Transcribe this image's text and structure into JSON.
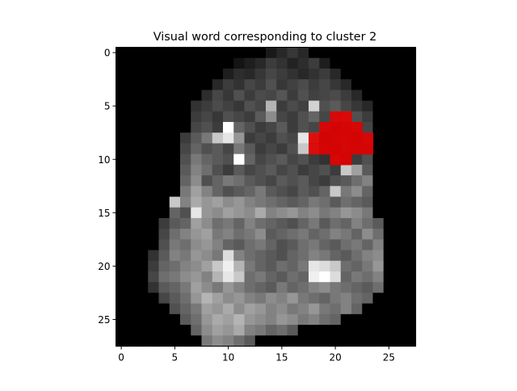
{
  "chart_data": {
    "type": "heatmap",
    "title": "Visual word corresponding to cluster 2",
    "xlabel": "",
    "ylabel": "",
    "xlim": [
      -0.5,
      27.5
    ],
    "ylim": [
      27.5,
      -0.5
    ],
    "xticks": [
      0,
      5,
      10,
      15,
      20,
      25
    ],
    "yticks": [
      0,
      5,
      10,
      15,
      20,
      25
    ],
    "grid": false,
    "colormap": "gray",
    "highlight_color": "#e00000",
    "highlight_cells": [
      [
        20,
        6
      ],
      [
        21,
        6
      ],
      [
        19,
        7
      ],
      [
        20,
        7
      ],
      [
        21,
        7
      ],
      [
        22,
        7
      ],
      [
        18,
        8
      ],
      [
        19,
        8
      ],
      [
        20,
        8
      ],
      [
        21,
        8
      ],
      [
        22,
        8
      ],
      [
        23,
        8
      ],
      [
        18,
        9
      ],
      [
        19,
        9
      ],
      [
        20,
        9
      ],
      [
        21,
        9
      ],
      [
        22,
        9
      ],
      [
        23,
        9
      ],
      [
        20,
        10
      ],
      [
        21,
        10
      ]
    ],
    "rows": [
      [
        0,
        0,
        0,
        0,
        0,
        0,
        0,
        0,
        0,
        0,
        0,
        0,
        0,
        0,
        25,
        40,
        55,
        40,
        0,
        0,
        0,
        0,
        0,
        0,
        0,
        0,
        0,
        0
      ],
      [
        0,
        0,
        0,
        0,
        0,
        0,
        0,
        0,
        0,
        0,
        0,
        20,
        30,
        40,
        60,
        50,
        35,
        45,
        60,
        30,
        0,
        0,
        0,
        0,
        0,
        0,
        0,
        0
      ],
      [
        0,
        0,
        0,
        0,
        0,
        0,
        0,
        0,
        0,
        0,
        30,
        45,
        40,
        55,
        70,
        60,
        50,
        40,
        50,
        60,
        40,
        0,
        0,
        0,
        0,
        0,
        0,
        0
      ],
      [
        0,
        0,
        0,
        0,
        0,
        0,
        0,
        0,
        0,
        40,
        60,
        50,
        70,
        60,
        80,
        55,
        65,
        75,
        60,
        70,
        55,
        40,
        0,
        0,
        0,
        0,
        0,
        0
      ],
      [
        0,
        0,
        0,
        0,
        0,
        0,
        0,
        0,
        45,
        70,
        55,
        80,
        60,
        75,
        70,
        85,
        60,
        80,
        65,
        70,
        75,
        60,
        40,
        0,
        0,
        0,
        0,
        0
      ],
      [
        0,
        0,
        0,
        0,
        0,
        0,
        0,
        50,
        60,
        75,
        65,
        55,
        80,
        70,
        180,
        60,
        75,
        65,
        210,
        80,
        90,
        70,
        55,
        40,
        0,
        0,
        0,
        0
      ],
      [
        0,
        0,
        0,
        0,
        0,
        0,
        0,
        60,
        70,
        55,
        80,
        70,
        60,
        90,
        140,
        70,
        60,
        80,
        100,
        70,
        120,
        110,
        80,
        60,
        0,
        0,
        0,
        0
      ],
      [
        0,
        0,
        0,
        0,
        0,
        0,
        0,
        70,
        80,
        60,
        255,
        100,
        80,
        60,
        70,
        90,
        60,
        80,
        70,
        90,
        60,
        80,
        90,
        70,
        0,
        0,
        0,
        0
      ],
      [
        0,
        0,
        0,
        0,
        0,
        0,
        60,
        90,
        120,
        200,
        230,
        150,
        60,
        70,
        60,
        80,
        70,
        230,
        180,
        60,
        70,
        80,
        60,
        90,
        0,
        0,
        0,
        0
      ],
      [
        0,
        0,
        0,
        0,
        0,
        0,
        70,
        100,
        80,
        90,
        70,
        120,
        90,
        60,
        70,
        60,
        80,
        200,
        150,
        70,
        60,
        80,
        70,
        70,
        0,
        0,
        0,
        0
      ],
      [
        0,
        0,
        0,
        0,
        0,
        0,
        80,
        120,
        100,
        90,
        80,
        255,
        100,
        70,
        80,
        90,
        70,
        80,
        60,
        50,
        90,
        70,
        60,
        80,
        0,
        0,
        0,
        0
      ],
      [
        0,
        0,
        0,
        0,
        0,
        0,
        90,
        130,
        110,
        80,
        60,
        90,
        70,
        80,
        90,
        70,
        80,
        60,
        70,
        80,
        60,
        200,
        160,
        90,
        0,
        0,
        0,
        0
      ],
      [
        0,
        0,
        0,
        0,
        0,
        0,
        100,
        140,
        80,
        100,
        120,
        110,
        90,
        80,
        70,
        90,
        80,
        90,
        70,
        60,
        80,
        90,
        110,
        130,
        0,
        0,
        0,
        0
      ],
      [
        0,
        0,
        0,
        0,
        0,
        0,
        120,
        160,
        130,
        100,
        80,
        90,
        100,
        120,
        90,
        80,
        70,
        90,
        80,
        100,
        200,
        120,
        140,
        100,
        0,
        0,
        0,
        0
      ],
      [
        0,
        0,
        0,
        0,
        0,
        200,
        130,
        170,
        150,
        160,
        140,
        150,
        130,
        120,
        110,
        100,
        90,
        100,
        120,
        110,
        90,
        110,
        100,
        90,
        0,
        0,
        0,
        0
      ],
      [
        0,
        0,
        0,
        0,
        0,
        100,
        80,
        230,
        150,
        140,
        160,
        150,
        140,
        170,
        130,
        140,
        150,
        130,
        140,
        120,
        130,
        150,
        140,
        120,
        0,
        0,
        0,
        0
      ],
      [
        0,
        0,
        0,
        0,
        60,
        90,
        100,
        160,
        140,
        110,
        120,
        100,
        130,
        110,
        100,
        90,
        80,
        100,
        120,
        90,
        110,
        100,
        130,
        110,
        90,
        0,
        0,
        0
      ],
      [
        0,
        0,
        0,
        0,
        70,
        110,
        130,
        150,
        160,
        120,
        130,
        110,
        120,
        140,
        90,
        100,
        110,
        120,
        100,
        110,
        130,
        120,
        100,
        140,
        110,
        0,
        0,
        0
      ],
      [
        0,
        0,
        0,
        0,
        80,
        120,
        110,
        140,
        150,
        130,
        100,
        90,
        110,
        120,
        100,
        80,
        90,
        110,
        120,
        100,
        90,
        110,
        120,
        100,
        130,
        0,
        0,
        0
      ],
      [
        0,
        0,
        0,
        50,
        90,
        130,
        120,
        150,
        140,
        120,
        220,
        130,
        110,
        100,
        90,
        80,
        100,
        110,
        130,
        120,
        100,
        90,
        110,
        130,
        140,
        0,
        0,
        0
      ],
      [
        0,
        0,
        0,
        60,
        100,
        110,
        130,
        140,
        160,
        200,
        240,
        180,
        120,
        100,
        90,
        110,
        100,
        120,
        230,
        220,
        200,
        110,
        100,
        120,
        150,
        0,
        0,
        0
      ],
      [
        0,
        0,
        0,
        70,
        110,
        120,
        140,
        150,
        130,
        180,
        230,
        200,
        110,
        120,
        100,
        90,
        110,
        100,
        240,
        255,
        220,
        100,
        120,
        110,
        130,
        0,
        0,
        0
      ],
      [
        0,
        0,
        0,
        50,
        90,
        100,
        120,
        160,
        140,
        120,
        150,
        130,
        110,
        100,
        90,
        120,
        100,
        110,
        130,
        140,
        120,
        110,
        100,
        90,
        110,
        0,
        0,
        0
      ],
      [
        0,
        0,
        0,
        0,
        70,
        90,
        110,
        150,
        180,
        160,
        140,
        150,
        130,
        120,
        140,
        130,
        150,
        120,
        110,
        100,
        120,
        130,
        110,
        100,
        0,
        0,
        0,
        0
      ],
      [
        0,
        0,
        0,
        0,
        0,
        80,
        100,
        120,
        160,
        150,
        170,
        140,
        160,
        150,
        130,
        140,
        120,
        130,
        150,
        120,
        110,
        130,
        100,
        0,
        0,
        0,
        0,
        0
      ],
      [
        0,
        0,
        0,
        0,
        0,
        0,
        90,
        110,
        150,
        170,
        160,
        180,
        150,
        140,
        130,
        150,
        140,
        120,
        130,
        110,
        100,
        0,
        0,
        0,
        0,
        0,
        0,
        0
      ],
      [
        0,
        0,
        0,
        0,
        0,
        0,
        0,
        100,
        140,
        160,
        150,
        170,
        130,
        120,
        100,
        110,
        90,
        0,
        0,
        0,
        0,
        0,
        0,
        0,
        0,
        0,
        0,
        0
      ],
      [
        0,
        0,
        0,
        0,
        0,
        0,
        0,
        0,
        120,
        140,
        130,
        110,
        90,
        0,
        0,
        0,
        0,
        0,
        0,
        0,
        0,
        0,
        0,
        0,
        0,
        0,
        0,
        0
      ]
    ]
  }
}
